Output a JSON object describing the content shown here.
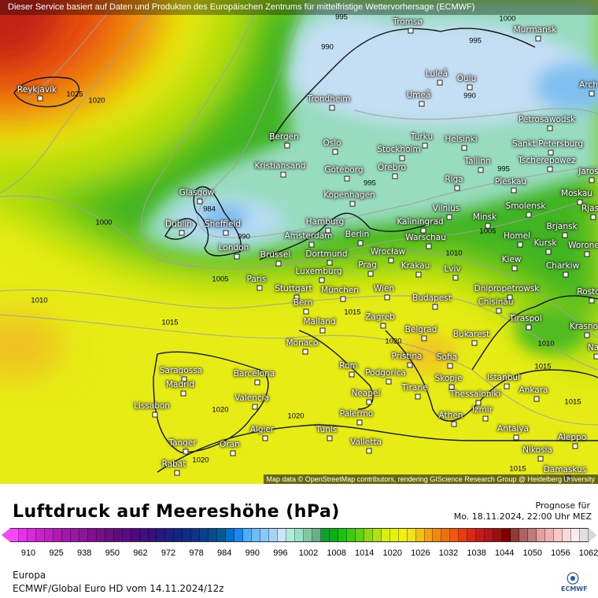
{
  "banner": "Dieser Service basiert auf Daten und Produkten des Europäischen Zentrums für mittelfristige Wettervorhersage (ECMWF)",
  "attribution": "Map data © OpenStreetMap contributors, rendering GIScience Research Group @ Heidelberg University",
  "cities": [
    "Reykjavík",
    "Tromsø",
    "Murmansk",
    "Luleå",
    "Oulu",
    "Arch",
    "Umeå",
    "Trondheim",
    "Petrosawodsk",
    "Bergen",
    "Oslo",
    "Turku",
    "Helsinki",
    "Sankt Petersburg",
    "Stockholm",
    "Kristiansand",
    "Göteborg",
    "Orebro",
    "Tallinn",
    "Tscherepowez",
    "Jaros",
    "Riga",
    "Pleskau",
    "Glasgow",
    "Kopenhagen",
    "Moskau",
    "Vilnius",
    "Smolensk",
    "Rjas",
    "Minsk",
    "Hamburg",
    "Kaliningrad",
    "Dublin",
    "Sheffield",
    "Brjansk",
    "Amsterdam",
    "Berlin",
    "Warschau",
    "Homel",
    "Kursk",
    "Worone",
    "London",
    "Brüssel",
    "Dortmund",
    "Wrocław",
    "Krakau",
    "Kiew",
    "Charkiw",
    "Paris",
    "Luxemburg",
    "Prag",
    "Lviv",
    "Stuttgart",
    "München",
    "Wien",
    "Dnipropetrowsk",
    "Rosto",
    "Budapest",
    "Chișinău",
    "Bern",
    "Tiraspol",
    "Mailand",
    "Zagreb",
    "Krasno",
    "Belgrad",
    "Bukarest",
    "Monaco",
    "Na",
    "Pristina",
    "Sofia",
    "Saragossa",
    "Barcelona",
    "Rom",
    "Podgorica",
    "Skopje",
    "Istanbul",
    "Madrid",
    "Neapel",
    "Tirane",
    "Thessaloniki",
    "Ankara",
    "Valencia",
    "Lissabon",
    "Izmir",
    "Athen",
    "Palermo",
    "Algier",
    "Tunis",
    "Antalya",
    "Aleppo",
    "Tanger",
    "Oran",
    "Valletta",
    "Nikosia",
    "Rabat",
    "Damaskus"
  ],
  "isobar_labels": [
    "995",
    "990",
    "1000",
    "995",
    "990",
    "1025",
    "1020",
    "1000",
    "984",
    "990",
    "995",
    "995",
    "1005",
    "1010",
    "1010",
    "1015",
    "1015",
    "1020",
    "1010",
    "1015",
    "1015",
    "1020",
    "1020",
    "1020",
    "1015",
    "1005"
  ],
  "legend": {
    "title": "Luftdruck auf Meereshöhe (hPa)",
    "forecast_label": "Prognose für",
    "forecast_time": "Mo. 18.11.2024, 22:00 Uhr MEZ",
    "ticks": [
      "910",
      "925",
      "938",
      "950",
      "962",
      "972",
      "978",
      "984",
      "990",
      "996",
      "1002",
      "1008",
      "1014",
      "1020",
      "1026",
      "1032",
      "1038",
      "1044",
      "1050",
      "1056",
      "1062"
    ],
    "colors": [
      "#f54af5",
      "#e82ee8",
      "#d82ad8",
      "#cc22cc",
      "#c01ec0",
      "#b01ab0",
      "#a018a8",
      "#9818a0",
      "#8c1498",
      "#801090",
      "#741088",
      "#681080",
      "#600c80",
      "#580c80",
      "#500880",
      "#401080",
      "#381078",
      "#2a1880",
      "#1c2080",
      "#142480",
      "#102c84",
      "#0c3488",
      "#08408c",
      "#064c90",
      "#045894",
      "#0070cc",
      "#1888f0",
      "#4cb0f8",
      "#6cbcf8",
      "#88c8f8",
      "#a8d4f8",
      "#cce6f8",
      "#b0ecdc",
      "#98e0c8",
      "#80c8a0",
      "#68b088",
      "#10a030",
      "#08b010",
      "#20c010",
      "#40c810",
      "#60d010",
      "#90d810",
      "#b0e010",
      "#d8f010",
      "#e8f010",
      "#f0f010",
      "#f0e020",
      "#f0c010",
      "#f0a010",
      "#f08810",
      "#f07010",
      "#f05810",
      "#e83c10",
      "#d82818",
      "#c81818",
      "#b01818",
      "#981010",
      "#800000",
      "#903838",
      "#b06060",
      "#c07878",
      "#e0a0a0",
      "#f0b0b0",
      "#f8c8c8",
      "#f8dada",
      "#f8ecec",
      "#e0e0e0"
    ]
  },
  "region": "Europa",
  "model": "ECMWF/Global Euro HD vom  14.11.2024/12z",
  "logo": "ECMWF"
}
